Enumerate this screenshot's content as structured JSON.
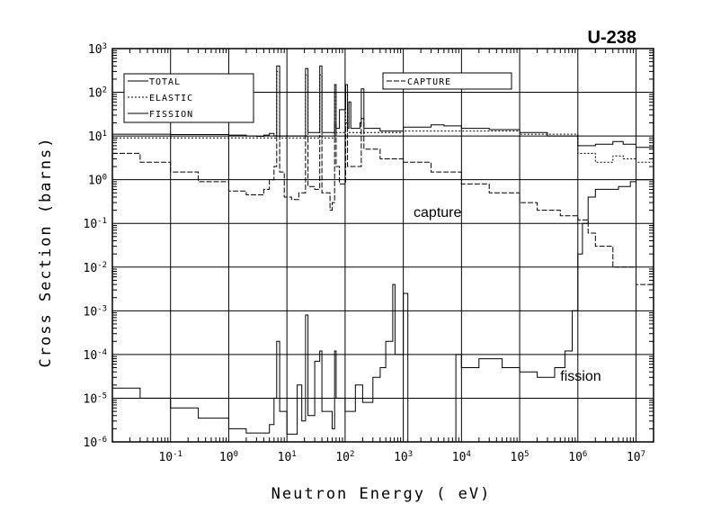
{
  "chart_data": {
    "type": "line",
    "title": "U-238",
    "xlabel": "Neutron Energy ( eV)",
    "ylabel": "Cross Section (barns)",
    "x_scale": "log",
    "y_scale": "log",
    "xlim": [
      0.01,
      20000000
    ],
    "ylim": [
      1e-06,
      1000
    ],
    "grid": true,
    "x_ticks": [
      {
        "base": "10",
        "exp": "-1",
        "value": 0.1
      },
      {
        "base": "10",
        "exp": "0",
        "value": 1
      },
      {
        "base": "10",
        "exp": "1",
        "value": 10
      },
      {
        "base": "10",
        "exp": "2",
        "value": 100
      },
      {
        "base": "10",
        "exp": "3",
        "value": 1000
      },
      {
        "base": "10",
        "exp": "4",
        "value": 10000
      },
      {
        "base": "10",
        "exp": "5",
        "value": 100000
      },
      {
        "base": "10",
        "exp": "6",
        "value": 1000000
      },
      {
        "base": "10",
        "exp": "7",
        "value": 10000000
      }
    ],
    "y_ticks": [
      {
        "base": "10",
        "exp": "-6",
        "value": 1e-06
      },
      {
        "base": "10",
        "exp": "-5",
        "value": 1e-05
      },
      {
        "base": "10",
        "exp": "-4",
        "value": 0.0001
      },
      {
        "base": "10",
        "exp": "-3",
        "value": 0.001
      },
      {
        "base": "10",
        "exp": "-2",
        "value": 0.01
      },
      {
        "base": "10",
        "exp": "-1",
        "value": 0.1
      },
      {
        "base": "10",
        "exp": "0",
        "value": 1
      },
      {
        "base": "10",
        "exp": "1",
        "value": 10
      },
      {
        "base": "10",
        "exp": "2",
        "value": 100
      },
      {
        "base": "10",
        "exp": "3",
        "value": 1000
      }
    ],
    "legend": {
      "box1": [
        {
          "label": "TOTAL",
          "style": "solid"
        },
        {
          "label": "ELASTIC",
          "style": "dotted"
        },
        {
          "label": "FISSION",
          "style": "solid"
        }
      ],
      "box2": [
        {
          "label": "CAPTURE",
          "style": "dashed"
        }
      ]
    },
    "annotations": [
      {
        "text": "capture",
        "x": 1500,
        "y": 0.14
      },
      {
        "text": "fission",
        "x": 500000,
        "y": 2.5e-05
      }
    ],
    "series": [
      {
        "name": "TOTAL",
        "style": "solid",
        "points": [
          [
            0.01,
            11
          ],
          [
            0.1,
            10.8
          ],
          [
            1,
            10.5
          ],
          [
            2,
            10
          ],
          [
            3,
            9.8
          ],
          [
            4,
            10.5
          ],
          [
            5,
            11.5
          ],
          [
            6,
            10
          ],
          [
            6.67,
            400
          ],
          [
            7.5,
            10
          ],
          [
            18,
            10
          ],
          [
            20.9,
            350
          ],
          [
            23,
            12
          ],
          [
            32,
            12
          ],
          [
            36.7,
            400
          ],
          [
            40,
            12
          ],
          [
            60,
            12
          ],
          [
            66,
            150
          ],
          [
            70,
            15
          ],
          [
            80,
            40
          ],
          [
            102,
            150
          ],
          [
            110,
            15
          ],
          [
            116,
            60
          ],
          [
            125,
            15
          ],
          [
            180,
            20
          ],
          [
            190,
            120
          ],
          [
            210,
            15
          ],
          [
            400,
            13
          ],
          [
            1000,
            16
          ],
          [
            3000,
            18
          ],
          [
            5000,
            17
          ],
          [
            10000,
            15
          ],
          [
            30000,
            14
          ],
          [
            100000,
            12
          ],
          [
            300000,
            10
          ],
          [
            1000000,
            6
          ],
          [
            2000000,
            6.5
          ],
          [
            4000000,
            7.5
          ],
          [
            6000000,
            6.5
          ],
          [
            10000000,
            5.5
          ],
          [
            20000000,
            5
          ]
        ]
      },
      {
        "name": "ELASTIC",
        "style": "dotted",
        "points": [
          [
            0.01,
            9
          ],
          [
            0.1,
            9
          ],
          [
            1,
            9
          ],
          [
            5,
            9
          ],
          [
            6.67,
            300
          ],
          [
            7.5,
            9
          ],
          [
            20.9,
            250
          ],
          [
            23,
            9
          ],
          [
            36.7,
            250
          ],
          [
            40,
            9
          ],
          [
            60,
            9
          ],
          [
            66,
            100
          ],
          [
            70,
            12
          ],
          [
            102,
            100
          ],
          [
            110,
            12
          ],
          [
            400,
            12
          ],
          [
            1000,
            13
          ],
          [
            10000,
            13
          ],
          [
            100000,
            11
          ],
          [
            1000000,
            4
          ],
          [
            2000000,
            2.5
          ],
          [
            4000000,
            3.5
          ],
          [
            6000000,
            3
          ],
          [
            10000000,
            2.5
          ],
          [
            20000000,
            2.2
          ]
        ]
      },
      {
        "name": "CAPTURE",
        "style": "dashed",
        "points": [
          [
            0.01,
            4
          ],
          [
            0.03,
            2.5
          ],
          [
            0.1,
            1.5
          ],
          [
            0.3,
            0.9
          ],
          [
            1,
            0.55
          ],
          [
            2,
            0.45
          ],
          [
            3,
            0.45
          ],
          [
            4,
            0.6
          ],
          [
            5,
            1
          ],
          [
            6,
            2
          ],
          [
            6.67,
            10
          ],
          [
            7.5,
            1.5
          ],
          [
            9,
            0.4
          ],
          [
            12,
            0.35
          ],
          [
            16,
            0.5
          ],
          [
            20.9,
            10
          ],
          [
            23,
            0.7
          ],
          [
            30,
            0.6
          ],
          [
            36.7,
            10
          ],
          [
            40,
            0.5
          ],
          [
            55,
            0.2
          ],
          [
            60,
            0.3
          ],
          [
            66,
            20
          ],
          [
            70,
            2
          ],
          [
            80,
            0.8
          ],
          [
            102,
            20
          ],
          [
            110,
            2
          ],
          [
            190,
            25
          ],
          [
            210,
            5
          ],
          [
            400,
            3
          ],
          [
            1000,
            2.5
          ],
          [
            3000,
            1.5
          ],
          [
            10000,
            0.8
          ],
          [
            30000,
            0.5
          ],
          [
            100000,
            0.3
          ],
          [
            200000,
            0.2
          ],
          [
            500000,
            0.15
          ],
          [
            1000000,
            0.12
          ],
          [
            1500000,
            0.06
          ],
          [
            2000000,
            0.03
          ],
          [
            4000000,
            0.01
          ],
          [
            10000000,
            0.004
          ],
          [
            20000000,
            0.0015
          ]
        ]
      },
      {
        "name": "FISSION",
        "style": "solid",
        "points": [
          [
            0.01,
            1.7e-05
          ],
          [
            0.03,
            1e-05
          ],
          [
            0.1,
            6e-06
          ],
          [
            0.3,
            3.5e-06
          ],
          [
            1,
            2e-06
          ],
          [
            2,
            1.6e-06
          ],
          [
            3,
            1.6e-06
          ],
          [
            5,
            2.5e-06
          ],
          [
            6,
            1e-05
          ],
          [
            6.67,
            0.0002
          ],
          [
            7.5,
            5e-06
          ],
          [
            10,
            1.5e-06
          ],
          [
            15,
            2e-05
          ],
          [
            18,
            3e-06
          ],
          [
            20.9,
            0.0008
          ],
          [
            23,
            4e-06
          ],
          [
            30,
            7e-05
          ],
          [
            36.7,
            0.00012
          ],
          [
            40,
            5e-06
          ],
          [
            60,
            2e-06
          ],
          [
            66,
            0.00012
          ],
          [
            70,
            1e-05
          ],
          [
            100,
            5e-06
          ],
          [
            150,
            2e-05
          ],
          [
            200,
            8e-06
          ],
          [
            300,
            3e-05
          ],
          [
            400,
            5e-05
          ],
          [
            500,
            0.0002
          ],
          [
            660,
            0.004
          ],
          [
            720,
            0.0001
          ],
          [
            1000,
            0.0025
          ],
          [
            1200,
            1e-06
          ],
          [
            6000,
            1e-06
          ],
          [
            8000,
            0.0001
          ],
          [
            10000,
            5e-05
          ],
          [
            20000,
            8e-05
          ],
          [
            50000,
            5e-05
          ],
          [
            100000,
            4e-05
          ],
          [
            200000,
            3e-05
          ],
          [
            400000,
            5e-05
          ],
          [
            600000,
            0.00012
          ],
          [
            800000,
            0.001
          ],
          [
            1000000,
            0.02
          ],
          [
            1200000,
            0.1
          ],
          [
            1500000,
            0.4
          ],
          [
            2000000,
            0.6
          ],
          [
            3000000,
            0.6
          ],
          [
            5000000,
            0.7
          ],
          [
            8000000,
            0.9
          ],
          [
            10000000,
            1
          ],
          [
            20000000,
            1.1
          ]
        ]
      }
    ]
  }
}
